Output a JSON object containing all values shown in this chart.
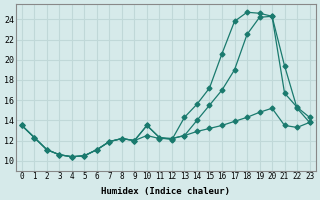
{
  "xlabel": "Humidex (Indice chaleur)",
  "ylabel": "",
  "bg_color": "#d6eaea",
  "grid_color": "#c0d8d8",
  "line_color": "#1a7a6e",
  "xlim": [
    -0.5,
    23.5
  ],
  "ylim": [
    9,
    25.5
  ],
  "xticks": [
    0,
    1,
    2,
    3,
    4,
    5,
    6,
    7,
    8,
    9,
    10,
    11,
    12,
    13,
    14,
    15,
    16,
    17,
    18,
    19,
    20,
    21,
    22,
    23
  ],
  "yticks": [
    10,
    12,
    14,
    16,
    18,
    20,
    22,
    24
  ],
  "line1_x": [
    0,
    1,
    2,
    3,
    4,
    5,
    6,
    7,
    8,
    9,
    10,
    11,
    12,
    13,
    14,
    15,
    16,
    17,
    18,
    19,
    20,
    21,
    22,
    23
  ],
  "line1_y": [
    13.5,
    12.3,
    11.1,
    10.6,
    10.4,
    10.5,
    11.1,
    11.9,
    12.2,
    12.0,
    13.5,
    12.3,
    12.1,
    14.3,
    15.6,
    17.2,
    20.6,
    23.8,
    24.7,
    24.6,
    24.3,
    16.7,
    15.3,
    14.3
  ],
  "line2_x": [
    0,
    1,
    2,
    3,
    4,
    5,
    6,
    7,
    8,
    9,
    10,
    11,
    12,
    13,
    14,
    15,
    16,
    17,
    18,
    19,
    20,
    21,
    22,
    23
  ],
  "line2_y": [
    13.5,
    12.3,
    11.1,
    10.6,
    10.4,
    10.5,
    11.1,
    11.9,
    12.2,
    12.0,
    13.5,
    12.3,
    12.2,
    12.5,
    14.0,
    15.5,
    17.0,
    19.0,
    22.5,
    24.2,
    24.3,
    19.4,
    15.2,
    13.8
  ],
  "line3_x": [
    0,
    1,
    2,
    3,
    4,
    5,
    6,
    7,
    8,
    9,
    10,
    11,
    12,
    13,
    14,
    15,
    16,
    17,
    18,
    19,
    20,
    21,
    22,
    23
  ],
  "line3_y": [
    13.5,
    12.3,
    11.1,
    10.6,
    10.4,
    10.5,
    11.1,
    11.9,
    12.2,
    12.0,
    12.5,
    12.2,
    12.2,
    12.5,
    12.9,
    13.2,
    13.5,
    13.9,
    14.3,
    14.8,
    15.2,
    13.5,
    13.3,
    13.8
  ]
}
